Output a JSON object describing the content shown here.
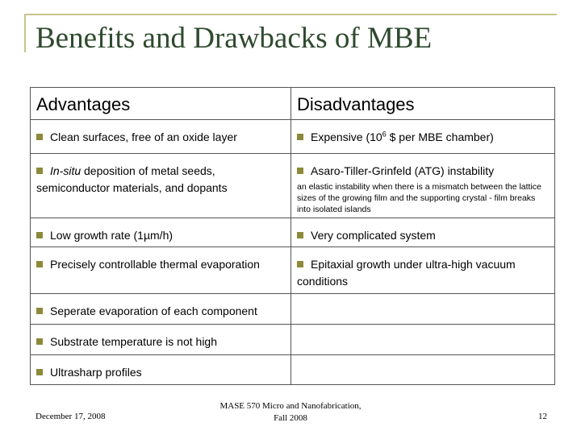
{
  "title": "Benefits and Drawbacks of MBE",
  "table": {
    "header": [
      "Advantages",
      "Disadvantages"
    ],
    "rows": [
      [
        {
          "runs": [
            "Clean surfaces, free of an oxide layer"
          ]
        },
        {
          "runs": [
            "Expensive (10",
            {
              "sup": "6"
            },
            " $ per MBE chamber)"
          ]
        }
      ],
      [
        {
          "runs": [
            {
              "italic": "In-situ"
            },
            " deposition of metal seeds, semiconductor materials, and dopants"
          ]
        },
        {
          "runs": [
            "Asaro-Tiller-Grinfeld (ATG) instability"
          ],
          "note": "an elastic instability when there is a mismatch between the lattice sizes of the growing film and the supporting crystal - film breaks into isolated islands"
        }
      ],
      [
        {
          "runs": [
            "Low growth rate (1µm/h)"
          ]
        },
        {
          "runs": [
            "Very complicated system"
          ]
        }
      ],
      [
        {
          "runs": [
            "Precisely controllable thermal evaporation"
          ]
        },
        {
          "runs": [
            "Epitaxial growth under ultra-high vacuum conditions"
          ]
        }
      ],
      [
        {
          "runs": [
            "Seperate evaporation of each component"
          ]
        },
        null
      ],
      [
        {
          "runs": [
            "Substrate temperature is not high"
          ]
        },
        null
      ],
      [
        {
          "runs": [
            "Ultrasharp profiles"
          ]
        },
        null
      ]
    ]
  },
  "footer": {
    "date": "December 17, 2008",
    "course": [
      "MASE 570 Micro and Nanofabrication,",
      "Fall 2008"
    ],
    "page": "12"
  }
}
